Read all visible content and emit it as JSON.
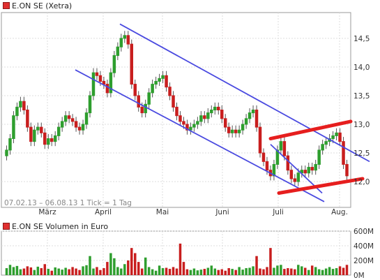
{
  "chart_data": [
    {
      "type": "candlestick",
      "title": "E.ON SE (Xetra)",
      "date_range": "07.02.13 – 06.08.13",
      "resolution": "1 Tick = 1 Tag",
      "x_tick_labels": [
        "März",
        "April",
        "Mai",
        "Juni",
        "Juli",
        "Aug."
      ],
      "y_ticks": [
        "12,0",
        "12,5",
        "13,0",
        "13,5",
        "14,0",
        "14,5"
      ],
      "y_tick_values": [
        12.0,
        12.5,
        13.0,
        13.5,
        14.0,
        14.5
      ],
      "ylim": [
        11.55,
        14.95
      ],
      "grid": true,
      "colors": {
        "up": "#2e9e2e",
        "down": "#c81e1e",
        "channel": "#4a4ae0",
        "trend": "#e61e1e"
      },
      "close": [
        12.55,
        12.75,
        13.15,
        13.3,
        13.4,
        13.25,
        12.95,
        12.7,
        12.9,
        12.95,
        12.85,
        12.65,
        12.75,
        12.7,
        12.8,
        12.95,
        13.05,
        13.15,
        13.1,
        13.05,
        12.95,
        12.9,
        13.0,
        13.2,
        13.5,
        13.9,
        13.85,
        13.75,
        13.7,
        13.55,
        13.9,
        14.2,
        14.35,
        14.5,
        14.55,
        14.4,
        13.7,
        13.5,
        13.3,
        13.2,
        13.35,
        13.55,
        13.7,
        13.75,
        13.8,
        13.85,
        13.65,
        13.5,
        13.3,
        13.15,
        13.05,
        13.0,
        12.9,
        12.95,
        13.0,
        13.05,
        13.15,
        13.1,
        13.2,
        13.25,
        13.3,
        13.25,
        13.1,
        12.95,
        12.85,
        12.9,
        12.85,
        12.9,
        13.0,
        13.1,
        13.2,
        13.25,
        12.95,
        12.5,
        12.35,
        12.2,
        12.1,
        12.3,
        12.55,
        12.7,
        12.45,
        12.2,
        12.05,
        12.0,
        12.15,
        12.2,
        12.15,
        12.25,
        12.2,
        12.3,
        12.55,
        12.65,
        12.7,
        12.75,
        12.8,
        12.85,
        12.7,
        12.3,
        12.1
      ],
      "channel_lines": [
        {
          "from": [
            "Apr",
            13.95
          ],
          "to": [
            "Aug",
            11.65
          ]
        },
        {
          "from": [
            "Apr",
            14.75
          ],
          "to": [
            "Aug",
            12.35
          ]
        },
        {
          "from": [
            "Jul",
            12.65
          ],
          "to": [
            "Jul",
            11.8
          ]
        }
      ],
      "trend_lines": [
        {
          "from": [
            "Jul",
            12.75
          ],
          "to": [
            "Aug",
            13.05
          ]
        },
        {
          "from": [
            "Jul",
            11.8
          ],
          "to": [
            "Aug",
            12.05
          ]
        }
      ]
    },
    {
      "type": "bar",
      "title": "E.ON SE Volumen in Euro",
      "y_ticks": [
        "0M",
        "200M",
        "400M",
        "600M"
      ],
      "y_tick_values": [
        0,
        200,
        400,
        600
      ],
      "ylim": [
        0,
        600
      ],
      "units": "Millionen Euro",
      "values": [
        95,
        140,
        110,
        125,
        80,
        90,
        120,
        105,
        70,
        115,
        95,
        150,
        85,
        60,
        105,
        90,
        75,
        100,
        80,
        110,
        90,
        70,
        120,
        135,
        260,
        90,
        110,
        70,
        95,
        180,
        300,
        230,
        110,
        90,
        150,
        200,
        370,
        300,
        180,
        90,
        240,
        110,
        80,
        60,
        130,
        95,
        100,
        85,
        110,
        90,
        430,
        180,
        80,
        70,
        90,
        65,
        75,
        85,
        100,
        130,
        90,
        70,
        80,
        60,
        95,
        85,
        70,
        110,
        75,
        95,
        100,
        120,
        260,
        90,
        80,
        110,
        370,
        100,
        130,
        140,
        85,
        95,
        90,
        80,
        140,
        120,
        100,
        70,
        130,
        110,
        80,
        70,
        90,
        110,
        85,
        95,
        120,
        100,
        140
      ]
    }
  ]
}
